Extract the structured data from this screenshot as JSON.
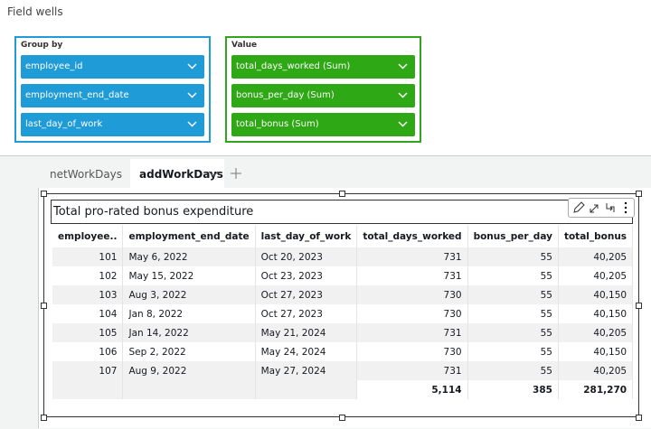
{
  "header": {
    "title": "Field wells"
  },
  "wells": [
    {
      "label": "Group by",
      "fields": [
        "employee_id",
        "employment_end_date",
        "last_day_of_work"
      ]
    },
    {
      "label": "Value",
      "fields": [
        "total_days_worked (Sum)",
        "bonus_per_day (Sum)",
        "total_bonus (Sum)"
      ]
    }
  ],
  "tabs": [
    "netWorkDays",
    "addWorkDays"
  ],
  "visual": {
    "title": "Total pro-rated bonus expenditure",
    "table": {
      "columns": [
        "employee..",
        "employment_end_date",
        "last_day_of_work",
        "total_days_worked",
        "bonus_per_day",
        "total_bonus"
      ],
      "rows": [
        [
          "101",
          "May 6, 2022",
          "Oct 20, 2023",
          "731",
          "55",
          "40,205"
        ],
        [
          "102",
          "May 15, 2022",
          "Oct 23, 2023",
          "731",
          "55",
          "40,205"
        ],
        [
          "103",
          "Aug 3, 2022",
          "Oct 27, 2023",
          "730",
          "55",
          "40,150"
        ],
        [
          "104",
          "Jan 8, 2022",
          "Oct 27, 2023",
          "730",
          "55",
          "40,150"
        ],
        [
          "105",
          "Jan 14, 2022",
          "May 21, 2024",
          "731",
          "55",
          "40,205"
        ],
        [
          "106",
          "Sep 2, 2022",
          "May 24, 2024",
          "730",
          "55",
          "40,150"
        ],
        [
          "107",
          "Aug 9, 2022",
          "May 27, 2024",
          "731",
          "55",
          "40,205"
        ]
      ],
      "totals": [
        "5,114",
        "385",
        "281,270"
      ]
    }
  }
}
